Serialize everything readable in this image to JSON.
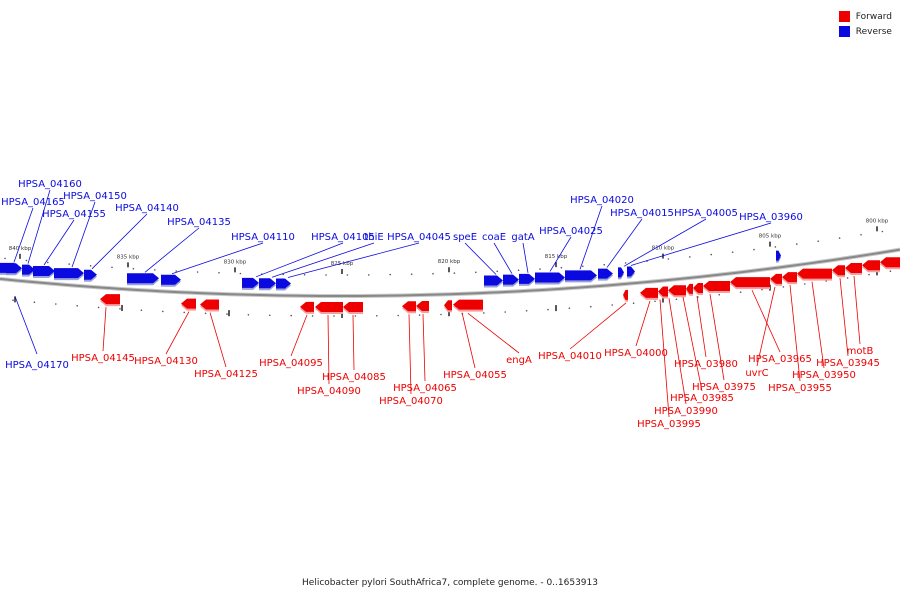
{
  "caption": "Helicobacter pylori SouthAfrica7, complete genome. - 0..1653913",
  "legend": [
    {
      "label": "Forward",
      "color": "#ee0000"
    },
    {
      "label": "Reverse",
      "color": "#0a0ae0"
    }
  ],
  "colors": {
    "forward": "#ee0000",
    "reverse": "#0a0ae0",
    "backbone": "#888888"
  },
  "scale_labels": [
    "840 kbp",
    "835 kbp",
    "830 kbp",
    "825 kbp",
    "820 kbp",
    "815 kbp",
    "810 kbp",
    "805 kbp",
    "800 kbp"
  ],
  "genes": {
    "reverse": [
      "HPSA_04170",
      "HPSA_04165",
      "HPSA_04160",
      "HPSA_04155",
      "HPSA_04150",
      "HPSA_04140",
      "HPSA_04135",
      "HPSA_04110",
      "HPSA_04105",
      "thiE",
      "HPSA_04045",
      "speE",
      "coaE",
      "gatA",
      "HPSA_04025",
      "HPSA_04020",
      "HPSA_04015",
      "HPSA_04005",
      "HPSA_03960"
    ],
    "forward": [
      "HPSA_04145",
      "HPSA_04130",
      "HPSA_04125",
      "HPSA_04095",
      "HPSA_04090",
      "HPSA_04085",
      "HPSA_04070",
      "HPSA_04065",
      "HPSA_04055",
      "engA",
      "HPSA_04010",
      "HPSA_04000",
      "HPSA_03995",
      "HPSA_03990",
      "HPSA_03985",
      "HPSA_03980",
      "HPSA_03975",
      "HPSA_03965",
      "uvrC",
      "HPSA_03955",
      "HPSA_03950",
      "HPSA_03945",
      "motB"
    ]
  }
}
